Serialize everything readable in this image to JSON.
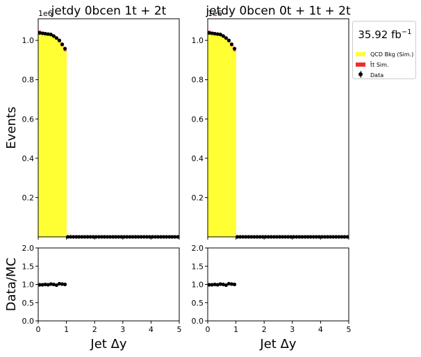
{
  "chart_data": [
    {
      "type": "bar",
      "title": "jetdy  0bcen 1t + 2t",
      "ylabel": "Events",
      "xlabel": "Jet Δy",
      "y_exponent": "1e6",
      "xlim": [
        0,
        5
      ],
      "ylim": [
        0,
        1.11
      ],
      "yticks": [
        "0.2",
        "0.4",
        "0.6",
        "0.8",
        "1.0"
      ],
      "xticks": [
        "0",
        "1",
        "2",
        "3",
        "4",
        "5"
      ],
      "bin_width": 0.1,
      "bin_lows": [
        0,
        0.1,
        0.2,
        0.3,
        0.4,
        0.5,
        0.6,
        0.7,
        0.8,
        0.9
      ],
      "series": [
        {
          "name": "QCD Bkg (Sim.)",
          "values": [
            1.045,
            1.04,
            1.035,
            1.035,
            1.03,
            1.02,
            1.005,
            0.99,
            0.97,
            0.945
          ]
        },
        {
          "name": "t̄t Sim.",
          "values": [
            0.004,
            0.004,
            0.004,
            0.004,
            0.004,
            0.004,
            0.004,
            0.004,
            0.004,
            0.004
          ]
        }
      ],
      "data_x": [
        0.05,
        0.15,
        0.25,
        0.35,
        0.45,
        0.55,
        0.65,
        0.75,
        0.85,
        0.95,
        1.05,
        1.15,
        1.25,
        1.35,
        1.45,
        1.55,
        1.65,
        1.75,
        1.85,
        1.95,
        2.05,
        2.15,
        2.25,
        2.35,
        2.45,
        2.55,
        2.65,
        2.75,
        2.85,
        2.95,
        3.05,
        3.15,
        3.25,
        3.35,
        3.45,
        3.55,
        3.65,
        3.75,
        3.85,
        3.95,
        4.05,
        4.15,
        4.25,
        4.35,
        4.45,
        4.55,
        4.65,
        4.75,
        4.85,
        4.95
      ],
      "data_y": [
        1.038,
        1.036,
        1.034,
        1.032,
        1.03,
        1.022,
        1.012,
        1.0,
        0.98,
        0.958,
        0,
        0,
        0,
        0,
        0,
        0,
        0,
        0,
        0,
        0,
        0,
        0,
        0,
        0,
        0,
        0,
        0,
        0,
        0,
        0,
        0,
        0,
        0,
        0,
        0,
        0,
        0,
        0,
        0,
        0,
        0,
        0,
        0,
        0,
        0,
        0,
        0,
        0,
        0,
        0
      ],
      "ratio": {
        "ylabel": "Data/MC",
        "ylim": [
          0,
          2
        ],
        "yticks": [
          "0.0",
          "0.5",
          "1.0",
          "1.5",
          "2.0"
        ],
        "x": [
          0.05,
          0.15,
          0.25,
          0.35,
          0.45,
          0.55,
          0.65,
          0.75,
          0.85,
          0.95
        ],
        "values": [
          0.99,
          0.99,
          1.0,
          0.99,
          1.01,
          1.0,
          0.98,
          1.02,
          1.01,
          1.0
        ]
      }
    },
    {
      "type": "bar",
      "title": "jetdy  0bcen 0t + 1t + 2t",
      "ylabel": "",
      "xlabel": "Jet Δy",
      "y_exponent": "1e6",
      "xlim": [
        0,
        5
      ],
      "ylim": [
        0,
        1.11
      ],
      "yticks": [
        "0.2",
        "0.4",
        "0.6",
        "0.8",
        "1.0"
      ],
      "xticks": [
        "0",
        "1",
        "2",
        "3",
        "4",
        "5"
      ],
      "bin_width": 0.1,
      "bin_lows": [
        0,
        0.1,
        0.2,
        0.3,
        0.4,
        0.5,
        0.6,
        0.7,
        0.8,
        0.9
      ],
      "series": [
        {
          "name": "QCD Bkg (Sim.)",
          "values": [
            1.045,
            1.04,
            1.035,
            1.035,
            1.03,
            1.02,
            1.005,
            0.99,
            0.97,
            0.945
          ]
        },
        {
          "name": "t̄t Sim.",
          "values": [
            0.004,
            0.004,
            0.004,
            0.004,
            0.004,
            0.004,
            0.004,
            0.004,
            0.004,
            0.004
          ]
        }
      ],
      "data_x": [
        0.05,
        0.15,
        0.25,
        0.35,
        0.45,
        0.55,
        0.65,
        0.75,
        0.85,
        0.95,
        1.05,
        1.15,
        1.25,
        1.35,
        1.45,
        1.55,
        1.65,
        1.75,
        1.85,
        1.95,
        2.05,
        2.15,
        2.25,
        2.35,
        2.45,
        2.55,
        2.65,
        2.75,
        2.85,
        2.95,
        3.05,
        3.15,
        3.25,
        3.35,
        3.45,
        3.55,
        3.65,
        3.75,
        3.85,
        3.95,
        4.05,
        4.15,
        4.25,
        4.35,
        4.45,
        4.55,
        4.65,
        4.75,
        4.85,
        4.95
      ],
      "data_y": [
        1.038,
        1.036,
        1.034,
        1.032,
        1.03,
        1.022,
        1.012,
        1.0,
        0.98,
        0.958,
        0,
        0,
        0,
        0,
        0,
        0,
        0,
        0,
        0,
        0,
        0,
        0,
        0,
        0,
        0,
        0,
        0,
        0,
        0,
        0,
        0,
        0,
        0,
        0,
        0,
        0,
        0,
        0,
        0,
        0,
        0,
        0,
        0,
        0,
        0,
        0,
        0,
        0,
        0,
        0
      ],
      "ratio": {
        "ylabel": "",
        "ylim": [
          0,
          2
        ],
        "yticks": [
          "0.0",
          "0.5",
          "1.0",
          "1.5",
          "2.0"
        ],
        "x": [
          0.05,
          0.15,
          0.25,
          0.35,
          0.45,
          0.55,
          0.65,
          0.75,
          0.85,
          0.95
        ],
        "values": [
          0.99,
          0.99,
          1.0,
          0.99,
          1.01,
          1.0,
          0.98,
          1.02,
          1.01,
          1.0
        ]
      }
    }
  ],
  "legend": {
    "lumi_value": "35.92 fb",
    "lumi_exponent": "−1",
    "entries": [
      {
        "label": "QCD Bkg (Sim.)"
      },
      {
        "label": "t̄t Sim."
      },
      {
        "label": "Data"
      }
    ],
    "position": "right"
  },
  "colors": {
    "qcd": "#ffff33",
    "ttbar": "#ee2e2e",
    "data": "#000000"
  }
}
